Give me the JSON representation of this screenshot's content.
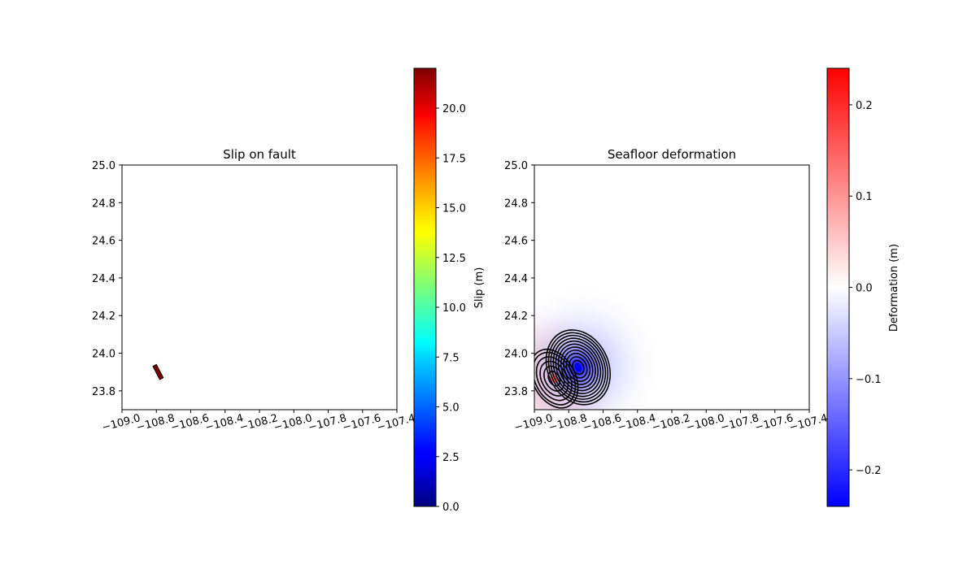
{
  "chart_data": [
    {
      "type": "heatmap",
      "title": "Slip on fault",
      "xlabel": "",
      "ylabel": "",
      "xlim": [
        -109.0,
        -107.4
      ],
      "ylim": [
        23.7,
        25.0
      ],
      "x_ticks": [
        "−109.0",
        "−108.8",
        "−108.6",
        "−108.4",
        "−108.2",
        "−108.0",
        "−107.8",
        "−107.6",
        "−107.4"
      ],
      "y_ticks": [
        "23.8",
        "24.0",
        "24.2",
        "24.4",
        "24.6",
        "24.8",
        "25.0"
      ],
      "grid": false,
      "fault_patch": {
        "corners": [
          [
            -108.82,
            23.93
          ],
          [
            -108.8,
            23.94
          ],
          [
            -108.76,
            23.87
          ],
          [
            -108.78,
            23.86
          ]
        ],
        "slip": 22,
        "color": "#7f0000"
      },
      "colorbar": {
        "label": "Slip (m)",
        "colormap": "jet",
        "range": [
          0,
          22
        ],
        "ticks": [
          "0.0",
          "2.5",
          "5.0",
          "7.5",
          "10.0",
          "12.5",
          "15.0",
          "17.5",
          "20.0"
        ]
      }
    },
    {
      "type": "heatmap",
      "title": "Seafloor deformation",
      "xlabel": "",
      "ylabel": "",
      "xlim": [
        -109.0,
        -107.4
      ],
      "ylim": [
        23.7,
        25.0
      ],
      "x_ticks": [
        "−109.0",
        "−108.8",
        "−108.6",
        "−108.4",
        "−108.2",
        "−108.0",
        "−107.8",
        "−107.6",
        "−107.4"
      ],
      "y_ticks": [
        "23.8",
        "24.0",
        "24.2",
        "24.4",
        "24.6",
        "24.8",
        "25.0"
      ],
      "grid": false,
      "uplift_lobe": {
        "center": [
          -108.885,
          23.865
        ],
        "peak": 0.24,
        "contour_levels": [
          0.02,
          0.05,
          0.09,
          0.13,
          0.17,
          0.21
        ]
      },
      "subsidence_lobe": {
        "center": [
          -108.745,
          23.925
        ],
        "peak": -0.24,
        "contour_levels": [
          -0.02,
          -0.04,
          -0.06,
          -0.08,
          -0.1,
          -0.12,
          -0.14,
          -0.16,
          -0.18,
          -0.2,
          -0.22
        ]
      },
      "contour_color": "#000000",
      "colorbar": {
        "label": "Deformation (m)",
        "colormap": "bwr",
        "range": [
          -0.24,
          0.24
        ],
        "ticks": [
          "−0.2",
          "−0.1",
          "0.0",
          "0.1",
          "0.2"
        ]
      }
    }
  ]
}
